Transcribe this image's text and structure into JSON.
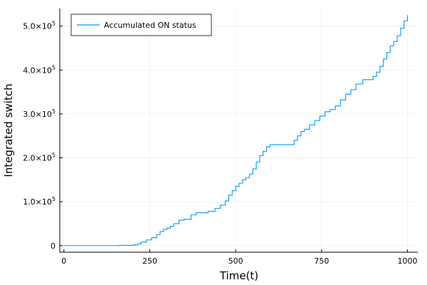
{
  "chart_data": {
    "type": "line",
    "title": "",
    "xlabel": "Time(t)",
    "ylabel": "Integrated switch",
    "xlim": [
      -12,
      1030
    ],
    "ylim": [
      -15000,
      540000
    ],
    "x_ticks": [
      {
        "value": 0,
        "label": "0"
      },
      {
        "value": 250,
        "label": "250"
      },
      {
        "value": 500,
        "label": "500"
      },
      {
        "value": 750,
        "label": "750"
      },
      {
        "value": 1000,
        "label": "1000"
      }
    ],
    "y_ticks": [
      {
        "value": 0,
        "mantissa": "0",
        "exponent": ""
      },
      {
        "value": 100000,
        "mantissa": "1.0×10",
        "exponent": "5"
      },
      {
        "value": 200000,
        "mantissa": "2.0×10",
        "exponent": "5"
      },
      {
        "value": 300000,
        "mantissa": "3.0×10",
        "exponent": "5"
      },
      {
        "value": 400000,
        "mantissa": "4.0×10",
        "exponent": "5"
      },
      {
        "value": 500000,
        "mantissa": "5.0×10",
        "exponent": "5"
      }
    ],
    "grid": true,
    "legend_position": "top-left",
    "series": [
      {
        "name": "Accumulated ON status",
        "color": "#009AFA",
        "step": true,
        "x": [
          0,
          160,
          200,
          215,
          225,
          240,
          255,
          270,
          280,
          290,
          300,
          310,
          320,
          335,
          350,
          370,
          385,
          400,
          420,
          440,
          455,
          470,
          480,
          490,
          500,
          510,
          520,
          530,
          540,
          550,
          560,
          570,
          580,
          590,
          600,
          630,
          660,
          670,
          680,
          690,
          700,
          715,
          730,
          745,
          760,
          775,
          790,
          805,
          820,
          835,
          850,
          870,
          890,
          900,
          910,
          920,
          930,
          940,
          950,
          960,
          970,
          980,
          990,
          1000
        ],
        "y": [
          0,
          500,
          1500,
          4000,
          8000,
          13000,
          18000,
          25000,
          32000,
          37000,
          40000,
          44000,
          50000,
          58000,
          60000,
          70000,
          75000,
          75000,
          78000,
          85000,
          92000,
          102000,
          115000,
          125000,
          135000,
          142000,
          150000,
          155000,
          163000,
          175000,
          190000,
          205000,
          215000,
          225000,
          230000,
          230000,
          230000,
          240000,
          250000,
          260000,
          265000,
          275000,
          285000,
          295000,
          305000,
          310000,
          318000,
          332000,
          345000,
          355000,
          368000,
          378000,
          378000,
          385000,
          395000,
          408000,
          425000,
          440000,
          455000,
          465000,
          478000,
          495000,
          512000,
          525000
        ]
      }
    ]
  }
}
